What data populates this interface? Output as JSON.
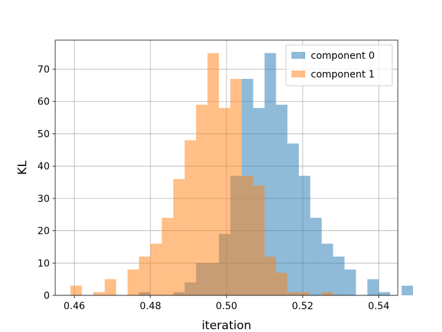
{
  "chart_data": {
    "type": "bar",
    "title": "",
    "xlabel": "iteration",
    "ylabel": "KL",
    "xlim": [
      0.455,
      0.545
    ],
    "ylim": [
      0,
      79
    ],
    "xticks": [
      "0.46",
      "0.48",
      "0.50",
      "0.52",
      "0.54"
    ],
    "xtick_values": [
      0.46,
      0.48,
      0.5,
      0.52,
      0.54
    ],
    "yticks": [
      "0",
      "10",
      "20",
      "30",
      "40",
      "50",
      "60",
      "70"
    ],
    "ytick_values": [
      0,
      10,
      20,
      30,
      40,
      50,
      60,
      70
    ],
    "grid": true,
    "legend_position": "top-right",
    "series": [
      {
        "name": "component 0",
        "color": "#1f77b4",
        "opacity": 0.5,
        "bins": [
          [
            0.477,
            0.48,
            1
          ],
          [
            0.486,
            0.489,
            1
          ],
          [
            0.489,
            0.492,
            4
          ],
          [
            0.492,
            0.495,
            10
          ],
          [
            0.495,
            0.498,
            10
          ],
          [
            0.498,
            0.501,
            19
          ],
          [
            0.501,
            0.504,
            37
          ],
          [
            0.504,
            0.507,
            67
          ],
          [
            0.507,
            0.51,
            58
          ],
          [
            0.51,
            0.513,
            75
          ],
          [
            0.513,
            0.516,
            59
          ],
          [
            0.516,
            0.519,
            47
          ],
          [
            0.519,
            0.522,
            37
          ],
          [
            0.522,
            0.525,
            24
          ],
          [
            0.525,
            0.528,
            16
          ],
          [
            0.528,
            0.531,
            12
          ],
          [
            0.531,
            0.534,
            8
          ],
          [
            0.537,
            0.54,
            5
          ],
          [
            0.54,
            0.543,
            1
          ],
          [
            0.546,
            0.549,
            3
          ]
        ]
      },
      {
        "name": "component 1",
        "color": "#ff7f0e",
        "opacity": 0.5,
        "bins": [
          [
            0.459,
            0.462,
            3
          ],
          [
            0.465,
            0.468,
            1
          ],
          [
            0.468,
            0.471,
            5
          ],
          [
            0.474,
            0.477,
            8
          ],
          [
            0.477,
            0.48,
            12
          ],
          [
            0.48,
            0.483,
            16
          ],
          [
            0.483,
            0.486,
            24
          ],
          [
            0.486,
            0.489,
            36
          ],
          [
            0.489,
            0.492,
            48
          ],
          [
            0.492,
            0.495,
            59
          ],
          [
            0.495,
            0.498,
            75
          ],
          [
            0.498,
            0.501,
            58
          ],
          [
            0.501,
            0.504,
            67
          ],
          [
            0.504,
            0.507,
            37
          ],
          [
            0.507,
            0.51,
            34
          ],
          [
            0.51,
            0.513,
            12
          ],
          [
            0.513,
            0.516,
            7
          ],
          [
            0.516,
            0.519,
            1
          ],
          [
            0.519,
            0.522,
            1
          ],
          [
            0.525,
            0.528,
            1
          ]
        ]
      }
    ]
  }
}
